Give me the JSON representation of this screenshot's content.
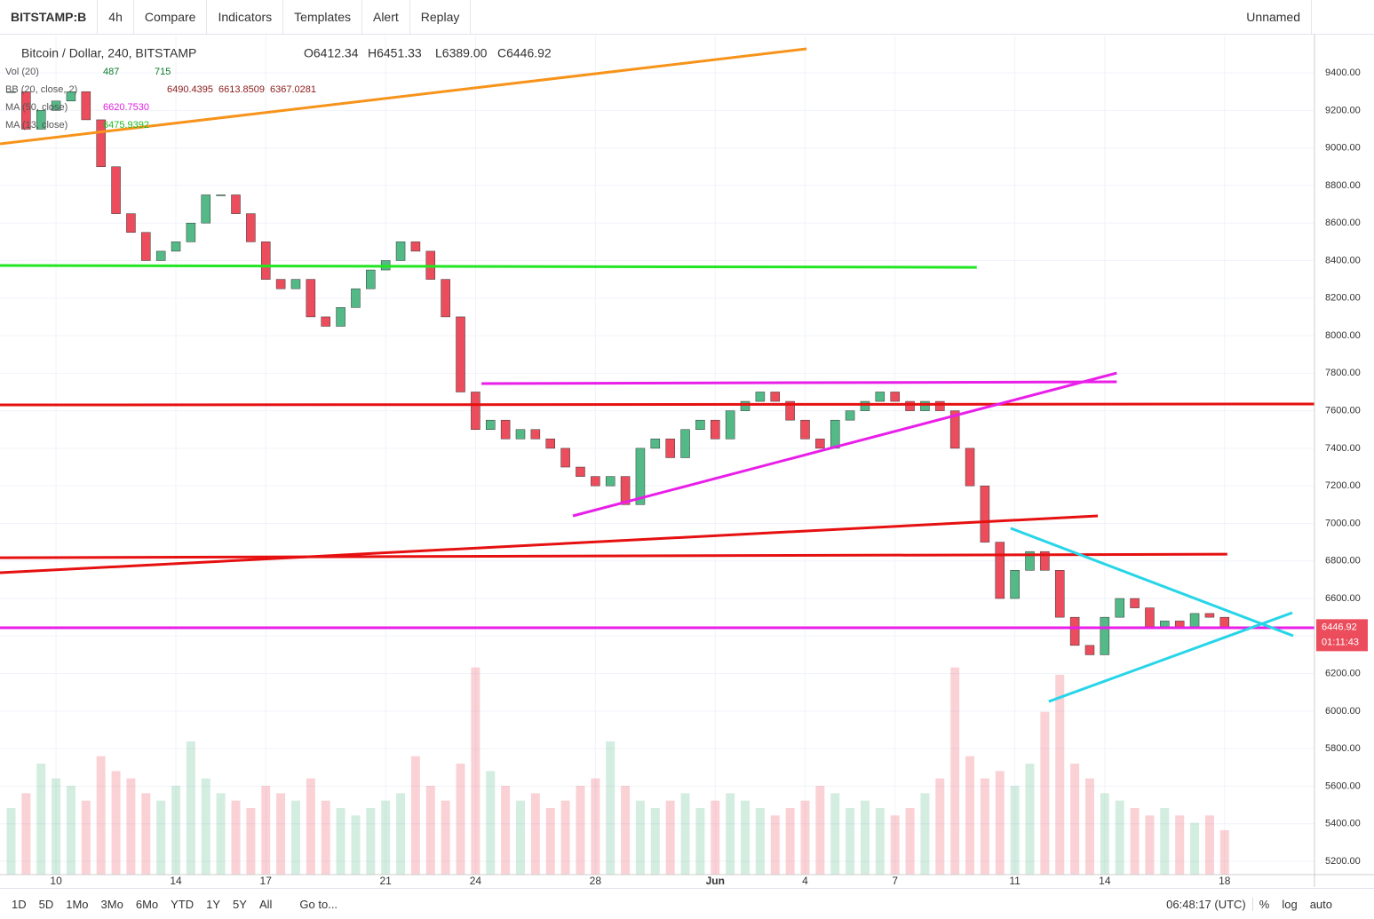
{
  "ui": {
    "symbol": "BITSTAMP:B",
    "interval": "4h",
    "compare": "Compare",
    "indicators": "Indicators",
    "templates": "Templates",
    "alert": "Alert",
    "replay": "Replay",
    "layout": "Unnamed",
    "ranges": [
      "1D",
      "5D",
      "1Mo",
      "3Mo",
      "6Mo",
      "YTD",
      "1Y",
      "5Y",
      "All"
    ],
    "goto": "Go to...",
    "clock": "06:48:17 (UTC)",
    "percent": "%",
    "log": "log",
    "auto": "auto",
    "countdown": "01:11:43"
  },
  "legend": {
    "title": "Bitcoin / Dollar, 240, BITSTAMP",
    "open": "O6412.34",
    "high": "H6451.33",
    "low": "L6389.00",
    "close": "C6446.92",
    "rows": [
      [
        "Vol (20)",
        "487",
        "715"
      ],
      [
        "BB (20, close, 2)",
        "6490.4395",
        "6613.8509",
        "6367.0281"
      ],
      [
        "MA (50, close)",
        "6620.7530"
      ],
      [
        "MA (13, close)",
        "6475.9392"
      ]
    ]
  },
  "chart_data": {
    "type": "candlestick",
    "up_color": "#53b987",
    "down_color": "#eb4d5c",
    "grid": true,
    "x": [
      -1.5,
      -1,
      -0.5,
      0,
      0.5,
      1,
      1.5,
      2,
      2.5,
      3,
      3.5,
      4,
      4.5,
      5,
      5.5,
      6,
      6.5,
      7,
      7.5,
      8,
      8.5,
      9,
      9.5,
      10,
      10.5,
      11,
      11.5,
      12,
      12.5,
      13,
      13.5,
      14,
      14.5,
      15,
      15.5,
      16,
      16.5,
      17,
      17.5,
      18,
      18.5,
      19,
      19.5,
      20,
      20.5,
      21,
      21.5,
      22,
      22.5,
      23,
      23.5,
      24,
      24.5,
      25,
      25.5,
      26,
      26.5,
      27,
      27.5,
      28,
      28.5,
      29,
      29.5,
      30,
      30.5,
      31,
      31.5,
      32,
      32.5,
      33,
      33.5,
      34,
      34.5,
      35,
      35.5,
      36,
      36.5,
      37,
      37.5,
      38,
      38.5,
      39
    ],
    "close": [
      9300,
      9100,
      9200,
      9250,
      9300,
      9150,
      8900,
      8650,
      8550,
      8400,
      8450,
      8500,
      8600,
      8750,
      8750,
      8650,
      8500,
      8300,
      8250,
      8300,
      8100,
      8050,
      8150,
      8250,
      8350,
      8400,
      8500,
      8450,
      8300,
      8100,
      7700,
      7500,
      7550,
      7450,
      7500,
      7450,
      7400,
      7300,
      7250,
      7200,
      7250,
      7100,
      7400,
      7450,
      7350,
      7500,
      7550,
      7450,
      7600,
      7650,
      7700,
      7650,
      7550,
      7450,
      7400,
      7550,
      7600,
      7650,
      7700,
      7650,
      7600,
      7650,
      7600,
      7400,
      7200,
      6900,
      6600,
      6750,
      6850,
      6750,
      6500,
      6350,
      6300,
      6500,
      6600,
      6550,
      6450,
      6480,
      6450,
      6520,
      6500,
      6446.92
    ],
    "volume": [
      900,
      1100,
      1500,
      1300,
      1200,
      1000,
      1600,
      1400,
      1300,
      1100,
      1000,
      1200,
      1800,
      1300,
      1100,
      1000,
      900,
      1200,
      1100,
      1000,
      1300,
      1000,
      900,
      800,
      900,
      1000,
      1100,
      1600,
      1200,
      1000,
      1500,
      2800,
      1400,
      1200,
      1000,
      1100,
      900,
      1000,
      1200,
      1300,
      1800,
      1200,
      1000,
      900,
      1000,
      1100,
      900,
      1000,
      1100,
      1000,
      900,
      800,
      900,
      1000,
      1200,
      1100,
      900,
      1000,
      900,
      800,
      900,
      1100,
      1300,
      2800,
      1600,
      1300,
      1400,
      1200,
      1500,
      2200,
      2700,
      1500,
      1300,
      1100,
      1000,
      900,
      800,
      900,
      800,
      700,
      800,
      600
    ],
    "vlim": [
      0,
      3000
    ],
    "xlim": [
      -1.87,
      42
    ],
    "ylim": [
      5129,
      9599
    ],
    "xticks": [
      {
        "value": 0,
        "label": "10"
      },
      {
        "value": 4,
        "label": "14"
      },
      {
        "value": 7,
        "label": "17"
      },
      {
        "value": 11,
        "label": "21"
      },
      {
        "value": 14,
        "label": "24"
      },
      {
        "value": 18,
        "label": "28"
      },
      {
        "value": 22,
        "label": "Jun"
      },
      {
        "value": 25,
        "label": "4"
      },
      {
        "value": 28,
        "label": "7"
      },
      {
        "value": 32,
        "label": "11"
      },
      {
        "value": 35,
        "label": "14"
      },
      {
        "value": 39,
        "label": "18"
      }
    ],
    "yticks": [
      {
        "value": 5200,
        "label": "5200.00"
      },
      {
        "value": 5400,
        "label": "5400.00"
      },
      {
        "value": 5600,
        "label": "5600.00"
      },
      {
        "value": 5800,
        "label": "5800.00"
      },
      {
        "value": 6000,
        "label": "6000.00"
      },
      {
        "value": 6200,
        "label": "6200.00"
      },
      {
        "value": 6400,
        "label": "6400.00"
      },
      {
        "value": 6600,
        "label": "6600.00"
      },
      {
        "value": 6800,
        "label": "6800.00"
      },
      {
        "value": 7000,
        "label": "7000.00"
      },
      {
        "value": 7200,
        "label": "7200.00"
      },
      {
        "value": 7400,
        "label": "7400.00"
      },
      {
        "value": 7600,
        "label": "7600.00"
      },
      {
        "value": 7800,
        "label": "7800.00"
      },
      {
        "value": 8000,
        "label": "8000.00"
      },
      {
        "value": 8200,
        "label": "8200.00"
      },
      {
        "value": 8400,
        "label": "8400.00"
      },
      {
        "value": 8600,
        "label": "8600.00"
      },
      {
        "value": 8800,
        "label": "8800.00"
      },
      {
        "value": 9000,
        "label": "9000.00"
      },
      {
        "value": 9200,
        "label": "9200.00"
      },
      {
        "value": 9400,
        "label": "9400.00"
      }
    ],
    "drawings": [
      {
        "color": "#f7931a",
        "x": [
          -1.87,
          25.05
        ],
        "y": [
          9022,
          9528
        ]
      },
      {
        "color": "#22e622",
        "x": [
          -1.87,
          30.73
        ],
        "y": [
          8374,
          8364
        ]
      },
      {
        "color": "#e61010",
        "x": [
          -1.87,
          42
        ],
        "y": [
          7631,
          7636
        ]
      },
      {
        "color": "#e61010",
        "x": [
          -1.87,
          39.09
        ],
        "y": [
          6817,
          6836
        ]
      },
      {
        "color": "#e61010",
        "x": [
          -1.87,
          34.77
        ],
        "y": [
          6737,
          7040
        ]
      },
      {
        "color": "#e91ee9",
        "x": [
          14.2,
          35.4
        ],
        "y": [
          7745,
          7754
        ]
      },
      {
        "color": "#e91ee9",
        "x": [
          17.25,
          35.4
        ],
        "y": [
          7040,
          7801
        ]
      },
      {
        "color": "#e91ee9",
        "x": [
          -1.87,
          42
        ],
        "y": [
          6444,
          6444
        ]
      },
      {
        "color": "#27d5e8",
        "x": [
          31.86,
          41.29
        ],
        "y": [
          6974,
          6401
        ]
      },
      {
        "color": "#27d5e8",
        "x": [
          33.13,
          41.26
        ],
        "y": [
          6051,
          6524
        ]
      }
    ]
  }
}
